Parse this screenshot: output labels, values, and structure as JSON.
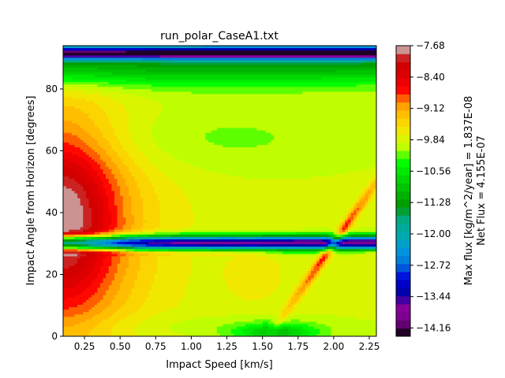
{
  "chart_data": {
    "type": "heatmap",
    "subtype": "filled-contour",
    "title": "run_polar_CaseA1.txt",
    "xlabel": "Impact Speed [km/s]",
    "ylabel": "Impact Angle from Horizon [degrees]",
    "xlim": [
      0.1,
      2.3
    ],
    "ylim": [
      0,
      94
    ],
    "xticks": [
      0.25,
      0.5,
      0.75,
      1.0,
      1.25,
      1.5,
      1.75,
      2.0,
      2.25
    ],
    "xtick_labels": [
      "0.25",
      "0.50",
      "0.75",
      "1.00",
      "1.25",
      "1.50",
      "1.75",
      "2.00",
      "2.25"
    ],
    "yticks": [
      0,
      20,
      40,
      60,
      80
    ],
    "ytick_labels": [
      "0",
      "20",
      "40",
      "60",
      "80"
    ],
    "colormap": "nipy_spectral",
    "colorbar": {
      "min": -14.35,
      "max": -7.68,
      "ticks": [
        -7.68,
        -8.4,
        -9.12,
        -9.84,
        -10.56,
        -11.28,
        -12.0,
        -12.72,
        -13.44,
        -14.16
      ],
      "tick_labels": [
        "−7.68",
        "−8.40",
        "−9.12",
        "−9.84",
        "−10.56",
        "−11.28",
        "−12.00",
        "−12.72",
        "−13.44",
        "−14.16"
      ],
      "label_line1": "Max flux [kg/m^2/year] = 1.837E-08",
      "label_line2": "Net Flux = 4.155E-07"
    },
    "value_field_notes": "log10 flux; peak ~-8.3 near low speed / 20-60 deg, -9.5..-10 plateau over 0.6-2.3 km/s, green band ~85 deg, deep minimum (blue/purple) at ~92 deg and along ~30 deg, diagonal high ridge from (1.7,10) to (2.3,50)"
  },
  "colors": {
    "frame": "#000000",
    "background": "#ffffff"
  }
}
